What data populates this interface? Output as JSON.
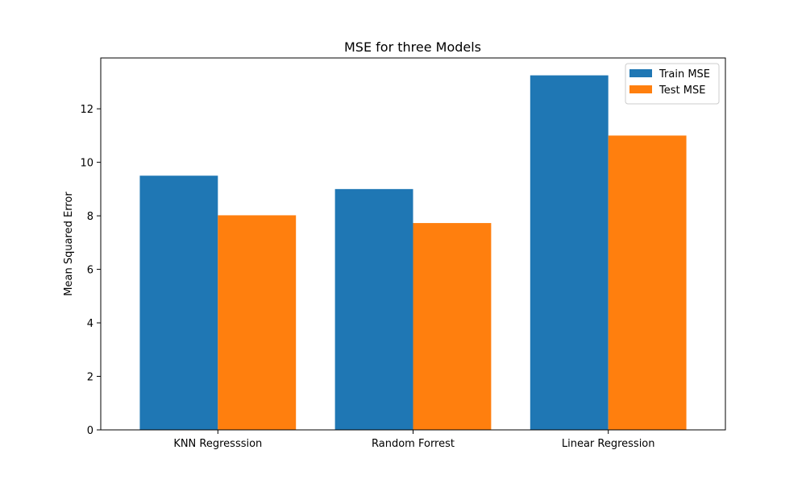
{
  "chart_data": {
    "type": "bar",
    "title": "MSE for three Models",
    "xlabel": "",
    "ylabel": "Mean Squared Error",
    "categories": [
      "KNN Regresssion",
      "Random Forrest",
      "Linear Regression"
    ],
    "series": [
      {
        "name": "Train MSE",
        "values": [
          9.5,
          9.0,
          13.25
        ],
        "color": "#1f77b4"
      },
      {
        "name": "Test MSE",
        "values": [
          8.02,
          7.73,
          11.0
        ],
        "color": "#ff7f0e"
      }
    ],
    "ylim": [
      0,
      13.9
    ],
    "yticks": [
      0,
      2,
      4,
      6,
      8,
      10,
      12
    ],
    "grid": false,
    "legend_position": "top-right"
  }
}
